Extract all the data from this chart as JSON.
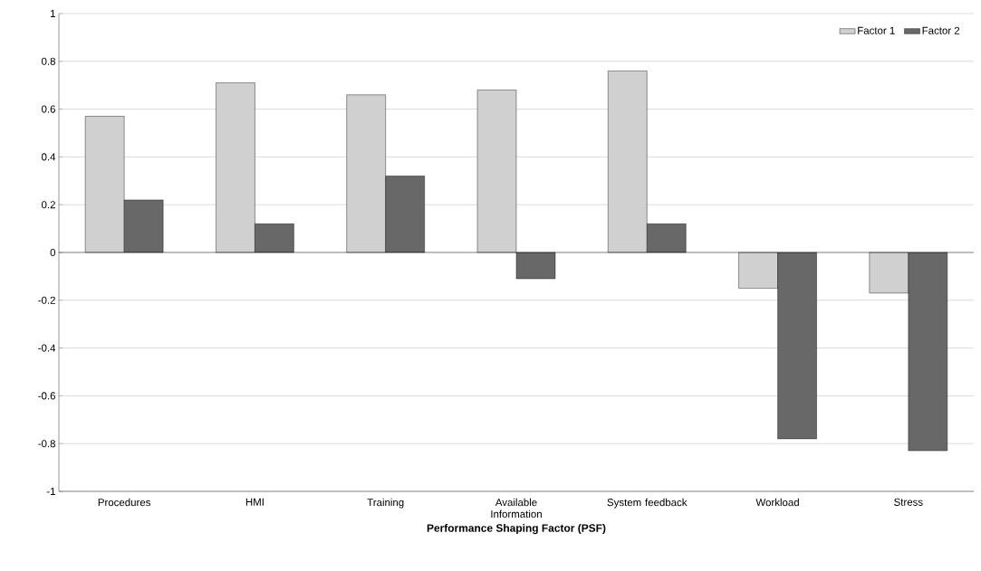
{
  "chart_data": {
    "type": "bar",
    "xlabel": "Performance Shaping Factor (PSF)",
    "categories": [
      "Procedures",
      "HMI",
      "Training",
      "Available Information",
      "System feedback",
      "Workload",
      "Stress"
    ],
    "series": [
      {
        "name": "Factor 1",
        "color": "#d0d0d0",
        "values": [
          0.57,
          0.71,
          0.66,
          0.68,
          0.76,
          -0.15,
          -0.17
        ]
      },
      {
        "name": "Factor 2",
        "color": "#686868",
        "values": [
          0.22,
          0.12,
          0.32,
          -0.11,
          0.12,
          -0.78,
          -0.83
        ]
      }
    ],
    "ylim": [
      -1,
      1
    ],
    "yticks": [
      -1,
      -0.8,
      -0.6,
      -0.4,
      -0.2,
      0,
      0.2,
      0.4,
      0.6,
      0.8,
      1
    ],
    "grid": "y",
    "legend": "top right"
  }
}
